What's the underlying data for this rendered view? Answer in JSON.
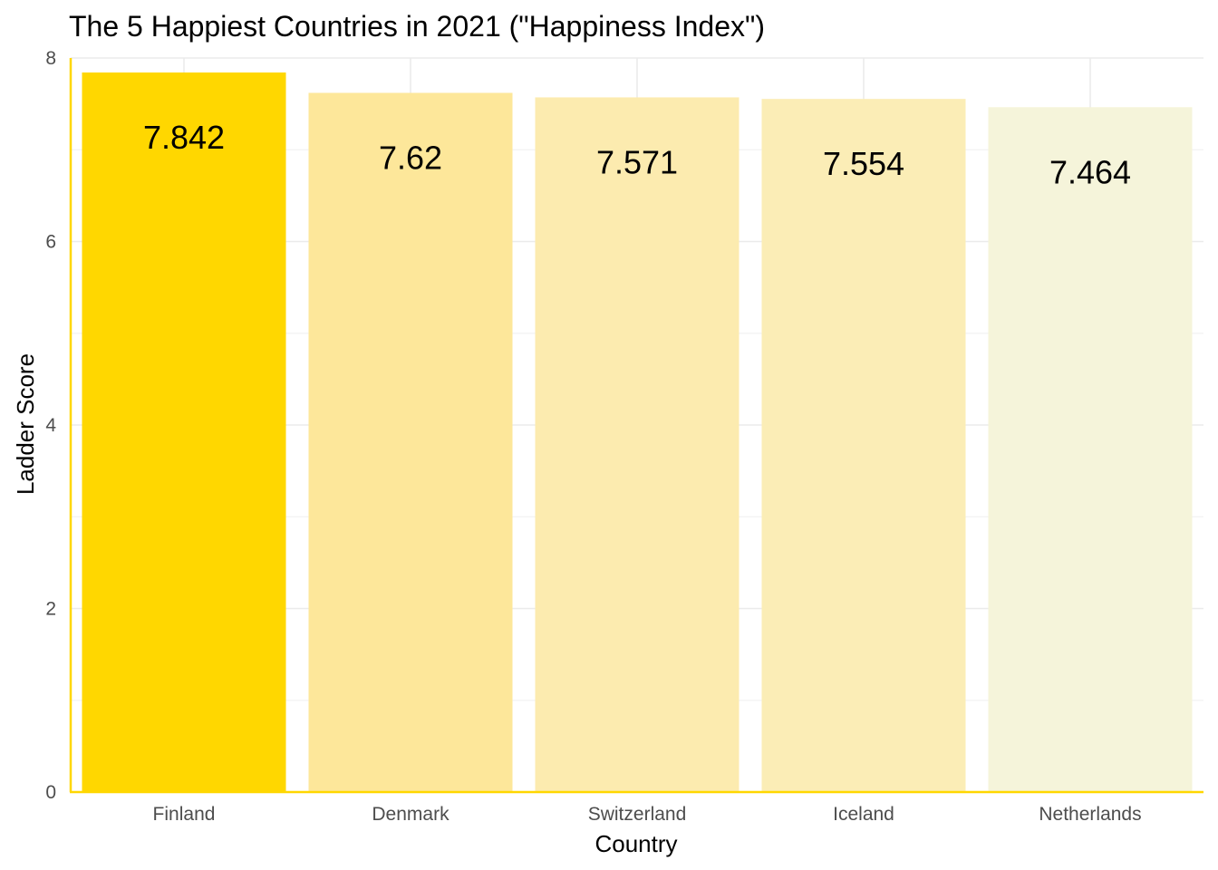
{
  "chart_data": {
    "type": "bar",
    "title": "The 5 Happiest Countries in 2021 (\"Happiness Index\")",
    "xlabel": "Country",
    "ylabel": "Ladder Score",
    "categories": [
      "Finland",
      "Denmark",
      "Switzerland",
      "Iceland",
      "Netherlands"
    ],
    "values": [
      7.842,
      7.62,
      7.571,
      7.554,
      7.464
    ],
    "data_labels": [
      "7.842",
      "7.62",
      "7.571",
      "7.554",
      "7.464"
    ],
    "bar_colors": [
      "#FFD700",
      "#FDE79A",
      "#FCEBAF",
      "#FBEDB6",
      "#F5F4DA"
    ],
    "ylim": [
      0,
      8
    ],
    "yticks": [
      0,
      2,
      4,
      6,
      8
    ],
    "ytick_labels": [
      "0",
      "2",
      "4",
      "6",
      "8"
    ],
    "grid": true,
    "legend": "none",
    "axis_line_color": "#FFD700"
  }
}
